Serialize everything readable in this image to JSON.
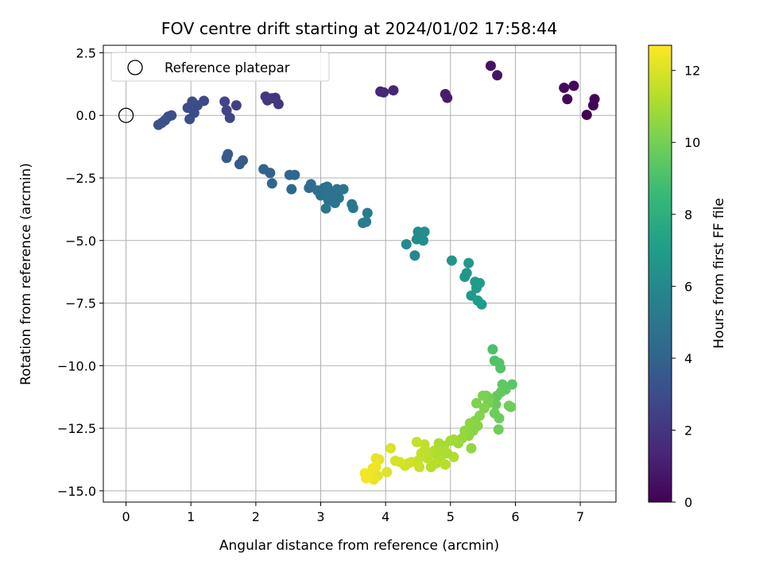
{
  "chart_data": {
    "type": "scatter",
    "title": "FOV centre drift starting at 2024/01/02 17:58:44",
    "xlabel": "Angular distance from reference (arcmin)",
    "ylabel": "Rotation from reference (arcmin)",
    "xlim": [
      -0.35,
      7.55
    ],
    "ylim": [
      -15.45,
      2.8
    ],
    "xticks": [
      0,
      1,
      2,
      3,
      4,
      5,
      6,
      7
    ],
    "xtick_labels": [
      "0",
      "1",
      "2",
      "3",
      "4",
      "5",
      "6",
      "7"
    ],
    "yticks": [
      2.5,
      0,
      -2.5,
      -5,
      -7.5,
      -10,
      -12.5,
      -15
    ],
    "ytick_labels": [
      "2.5",
      "0.0",
      "−2.5",
      "−5.0",
      "−7.5",
      "−10.0",
      "−12.5",
      "−15.0"
    ],
    "grid": true,
    "legend": {
      "placement": "upper-left",
      "entries": [
        {
          "label": "Reference platepar",
          "marker": "open-circle"
        }
      ]
    },
    "reference_point": {
      "x": 0,
      "y": 0
    },
    "colorbar": {
      "label": "Hours from first FF file",
      "range": [
        0,
        12.7
      ],
      "ticks": [
        0,
        2,
        4,
        6,
        8,
        10,
        12
      ],
      "tick_labels": [
        "0",
        "2",
        "4",
        "6",
        "8",
        "10",
        "12"
      ],
      "colormap": "viridis",
      "stops": [
        "#440154",
        "#482878",
        "#3e4989",
        "#31688e",
        "#26828e",
        "#1f9e89",
        "#35b779",
        "#6ece58",
        "#b5de2b",
        "#fde725"
      ]
    },
    "series": [
      {
        "values": [
          {
            "x": 7.1,
            "y": 0.02,
            "h": 0.0
          },
          {
            "x": 7.2,
            "y": 0.4,
            "h": 0.1
          },
          {
            "x": 7.22,
            "y": 0.65,
            "h": 0.1
          },
          {
            "x": 6.9,
            "y": 1.18,
            "h": 0.2
          },
          {
            "x": 6.8,
            "y": 0.65,
            "h": 0.2
          },
          {
            "x": 6.75,
            "y": 1.1,
            "h": 0.3
          },
          {
            "x": 5.62,
            "y": 1.98,
            "h": 0.6
          },
          {
            "x": 5.72,
            "y": 1.6,
            "h": 0.7
          },
          {
            "x": 4.95,
            "y": 0.7,
            "h": 1.0
          },
          {
            "x": 4.92,
            "y": 0.85,
            "h": 1.0
          },
          {
            "x": 4.12,
            "y": 1.0,
            "h": 1.3
          },
          {
            "x": 3.92,
            "y": 0.95,
            "h": 1.4
          },
          {
            "x": 3.97,
            "y": 0.92,
            "h": 1.4
          },
          {
            "x": 2.35,
            "y": 0.45,
            "h": 2.0
          },
          {
            "x": 2.3,
            "y": 0.7,
            "h": 2.0
          },
          {
            "x": 2.15,
            "y": 0.75,
            "h": 2.1
          },
          {
            "x": 2.18,
            "y": 0.6,
            "h": 2.1
          },
          {
            "x": 2.25,
            "y": 0.68,
            "h": 2.1
          },
          {
            "x": 1.7,
            "y": 0.4,
            "h": 2.5
          },
          {
            "x": 1.6,
            "y": -0.1,
            "h": 2.6
          },
          {
            "x": 1.55,
            "y": 0.2,
            "h": 2.6
          },
          {
            "x": 1.52,
            "y": 0.55,
            "h": 2.7
          },
          {
            "x": 1.2,
            "y": 0.58,
            "h": 2.8
          },
          {
            "x": 1.1,
            "y": 0.4,
            "h": 2.9
          },
          {
            "x": 1.05,
            "y": 0.1,
            "h": 2.9
          },
          {
            "x": 1.02,
            "y": 0.55,
            "h": 3.0
          },
          {
            "x": 0.98,
            "y": -0.15,
            "h": 3.0
          },
          {
            "x": 0.95,
            "y": 0.3,
            "h": 3.0
          },
          {
            "x": 0.7,
            "y": 0.0,
            "h": 3.1
          },
          {
            "x": 0.65,
            "y": -0.05,
            "h": 3.1
          },
          {
            "x": 0.6,
            "y": -0.2,
            "h": 3.2
          },
          {
            "x": 0.55,
            "y": -0.3,
            "h": 3.2
          },
          {
            "x": 0.5,
            "y": -0.38,
            "h": 3.2
          },
          {
            "x": 1.55,
            "y": -1.7,
            "h": 3.6
          },
          {
            "x": 1.57,
            "y": -1.55,
            "h": 3.6
          },
          {
            "x": 1.75,
            "y": -1.95,
            "h": 3.7
          },
          {
            "x": 1.8,
            "y": -1.8,
            "h": 3.7
          },
          {
            "x": 2.12,
            "y": -2.15,
            "h": 4.0
          },
          {
            "x": 2.22,
            "y": -2.3,
            "h": 4.0
          },
          {
            "x": 2.25,
            "y": -2.72,
            "h": 4.1
          },
          {
            "x": 2.52,
            "y": -2.38,
            "h": 4.2
          },
          {
            "x": 2.6,
            "y": -2.38,
            "h": 4.2
          },
          {
            "x": 2.55,
            "y": -2.95,
            "h": 4.3
          },
          {
            "x": 2.85,
            "y": -2.75,
            "h": 4.5
          },
          {
            "x": 2.82,
            "y": -2.9,
            "h": 4.5
          },
          {
            "x": 2.95,
            "y": -3.0,
            "h": 4.6
          },
          {
            "x": 3.0,
            "y": -3.2,
            "h": 4.6
          },
          {
            "x": 3.05,
            "y": -2.9,
            "h": 4.6
          },
          {
            "x": 3.08,
            "y": -3.15,
            "h": 4.7
          },
          {
            "x": 3.1,
            "y": -2.85,
            "h": 4.7
          },
          {
            "x": 3.12,
            "y": -3.4,
            "h": 4.7
          },
          {
            "x": 3.15,
            "y": -3.05,
            "h": 4.8
          },
          {
            "x": 3.2,
            "y": -3.25,
            "h": 4.8
          },
          {
            "x": 3.22,
            "y": -3.5,
            "h": 4.8
          },
          {
            "x": 3.25,
            "y": -2.95,
            "h": 4.9
          },
          {
            "x": 3.28,
            "y": -3.3,
            "h": 4.9
          },
          {
            "x": 3.35,
            "y": -2.95,
            "h": 5.0
          },
          {
            "x": 3.08,
            "y": -3.72,
            "h": 5.0
          },
          {
            "x": 3.48,
            "y": -3.55,
            "h": 5.1
          },
          {
            "x": 3.5,
            "y": -3.7,
            "h": 5.1
          },
          {
            "x": 3.65,
            "y": -4.3,
            "h": 5.3
          },
          {
            "x": 3.7,
            "y": -4.25,
            "h": 5.3
          },
          {
            "x": 3.72,
            "y": -3.9,
            "h": 5.3
          },
          {
            "x": 4.32,
            "y": -5.15,
            "h": 6.0
          },
          {
            "x": 4.45,
            "y": -5.6,
            "h": 6.0
          },
          {
            "x": 4.48,
            "y": -4.95,
            "h": 6.1
          },
          {
            "x": 4.5,
            "y": -4.65,
            "h": 6.1
          },
          {
            "x": 4.55,
            "y": -4.85,
            "h": 6.1
          },
          {
            "x": 4.58,
            "y": -5.0,
            "h": 6.2
          },
          {
            "x": 4.6,
            "y": -4.65,
            "h": 6.2
          },
          {
            "x": 5.02,
            "y": -5.8,
            "h": 6.6
          },
          {
            "x": 5.22,
            "y": -6.45,
            "h": 6.7
          },
          {
            "x": 5.25,
            "y": -6.3,
            "h": 6.7
          },
          {
            "x": 5.28,
            "y": -5.9,
            "h": 6.8
          },
          {
            "x": 5.32,
            "y": -7.2,
            "h": 6.8
          },
          {
            "x": 5.38,
            "y": -6.65,
            "h": 6.9
          },
          {
            "x": 5.4,
            "y": -6.9,
            "h": 6.9
          },
          {
            "x": 5.42,
            "y": -7.4,
            "h": 7.0
          },
          {
            "x": 5.45,
            "y": -6.7,
            "h": 7.0
          },
          {
            "x": 5.48,
            "y": -7.55,
            "h": 7.0
          },
          {
            "x": 5.65,
            "y": -9.35,
            "h": 9.0
          },
          {
            "x": 5.68,
            "y": -9.8,
            "h": 9.1
          },
          {
            "x": 5.75,
            "y": -9.9,
            "h": 9.2
          },
          {
            "x": 5.77,
            "y": -10.1,
            "h": 9.2
          },
          {
            "x": 5.95,
            "y": -10.75,
            "h": 9.4
          },
          {
            "x": 5.8,
            "y": -10.75,
            "h": 9.5
          },
          {
            "x": 5.85,
            "y": -10.95,
            "h": 9.5
          },
          {
            "x": 5.78,
            "y": -11.05,
            "h": 9.6
          },
          {
            "x": 5.72,
            "y": -11.2,
            "h": 9.6
          },
          {
            "x": 5.7,
            "y": -11.55,
            "h": 9.7
          },
          {
            "x": 5.68,
            "y": -11.9,
            "h": 9.8
          },
          {
            "x": 5.75,
            "y": -12.1,
            "h": 9.8
          },
          {
            "x": 5.74,
            "y": -12.55,
            "h": 9.9
          },
          {
            "x": 5.93,
            "y": -11.65,
            "h": 9.9
          },
          {
            "x": 5.9,
            "y": -11.6,
            "h": 9.9
          },
          {
            "x": 5.6,
            "y": -11.3,
            "h": 10.0
          },
          {
            "x": 5.55,
            "y": -11.2,
            "h": 10.0
          },
          {
            "x": 5.5,
            "y": -11.2,
            "h": 10.1
          },
          {
            "x": 5.58,
            "y": -11.5,
            "h": 10.1
          },
          {
            "x": 5.52,
            "y": -11.7,
            "h": 10.2
          },
          {
            "x": 5.4,
            "y": -11.5,
            "h": 10.2
          },
          {
            "x": 5.45,
            "y": -12.0,
            "h": 10.3
          },
          {
            "x": 5.38,
            "y": -12.2,
            "h": 10.3
          },
          {
            "x": 5.42,
            "y": -12.4,
            "h": 10.4
          },
          {
            "x": 5.35,
            "y": -12.6,
            "h": 10.4
          },
          {
            "x": 5.3,
            "y": -12.3,
            "h": 10.5
          },
          {
            "x": 5.28,
            "y": -12.8,
            "h": 10.5
          },
          {
            "x": 5.32,
            "y": -13.3,
            "h": 10.6
          },
          {
            "x": 5.22,
            "y": -12.6,
            "h": 10.6
          },
          {
            "x": 5.18,
            "y": -12.9,
            "h": 10.7
          },
          {
            "x": 5.12,
            "y": -13.1,
            "h": 10.8
          },
          {
            "x": 5.05,
            "y": -12.95,
            "h": 10.9
          },
          {
            "x": 5.0,
            "y": -13.0,
            "h": 10.9
          },
          {
            "x": 4.9,
            "y": -13.2,
            "h": 11.0
          },
          {
            "x": 4.82,
            "y": -13.1,
            "h": 11.0
          },
          {
            "x": 4.88,
            "y": -13.4,
            "h": 11.1
          },
          {
            "x": 4.8,
            "y": -13.6,
            "h": 11.1
          },
          {
            "x": 4.85,
            "y": -13.8,
            "h": 11.2
          },
          {
            "x": 4.75,
            "y": -13.4,
            "h": 11.2
          },
          {
            "x": 4.78,
            "y": -13.9,
            "h": 11.3
          },
          {
            "x": 4.7,
            "y": -14.05,
            "h": 11.3
          },
          {
            "x": 4.65,
            "y": -13.7,
            "h": 11.4
          },
          {
            "x": 4.62,
            "y": -13.4,
            "h": 11.4
          },
          {
            "x": 4.6,
            "y": -13.15,
            "h": 11.5
          },
          {
            "x": 4.55,
            "y": -13.5,
            "h": 11.5
          },
          {
            "x": 4.5,
            "y": -13.8,
            "h": 11.6
          },
          {
            "x": 4.48,
            "y": -13.05,
            "h": 11.6
          },
          {
            "x": 4.52,
            "y": -14.05,
            "h": 11.7
          },
          {
            "x": 4.4,
            "y": -13.85,
            "h": 11.7
          },
          {
            "x": 4.35,
            "y": -13.9,
            "h": 11.8
          },
          {
            "x": 4.3,
            "y": -14.0,
            "h": 11.8
          },
          {
            "x": 4.92,
            "y": -13.95,
            "h": 11.3
          },
          {
            "x": 5.05,
            "y": -13.65,
            "h": 11.2
          },
          {
            "x": 4.95,
            "y": -13.5,
            "h": 11.1
          },
          {
            "x": 4.22,
            "y": -13.85,
            "h": 11.9
          },
          {
            "x": 4.15,
            "y": -13.8,
            "h": 11.9
          },
          {
            "x": 4.08,
            "y": -13.3,
            "h": 12.0
          },
          {
            "x": 4.02,
            "y": -14.25,
            "h": 12.1
          },
          {
            "x": 3.88,
            "y": -14.4,
            "h": 12.2
          },
          {
            "x": 3.9,
            "y": -13.75,
            "h": 12.2
          },
          {
            "x": 3.85,
            "y": -13.7,
            "h": 12.3
          },
          {
            "x": 3.82,
            "y": -14.55,
            "h": 12.3
          },
          {
            "x": 3.8,
            "y": -14.1,
            "h": 12.4
          },
          {
            "x": 3.75,
            "y": -14.4,
            "h": 12.4
          },
          {
            "x": 3.7,
            "y": -14.5,
            "h": 12.5
          },
          {
            "x": 3.68,
            "y": -14.3,
            "h": 12.5
          },
          {
            "x": 3.85,
            "y": -14.05,
            "h": 12.4
          }
        ]
      }
    ]
  }
}
